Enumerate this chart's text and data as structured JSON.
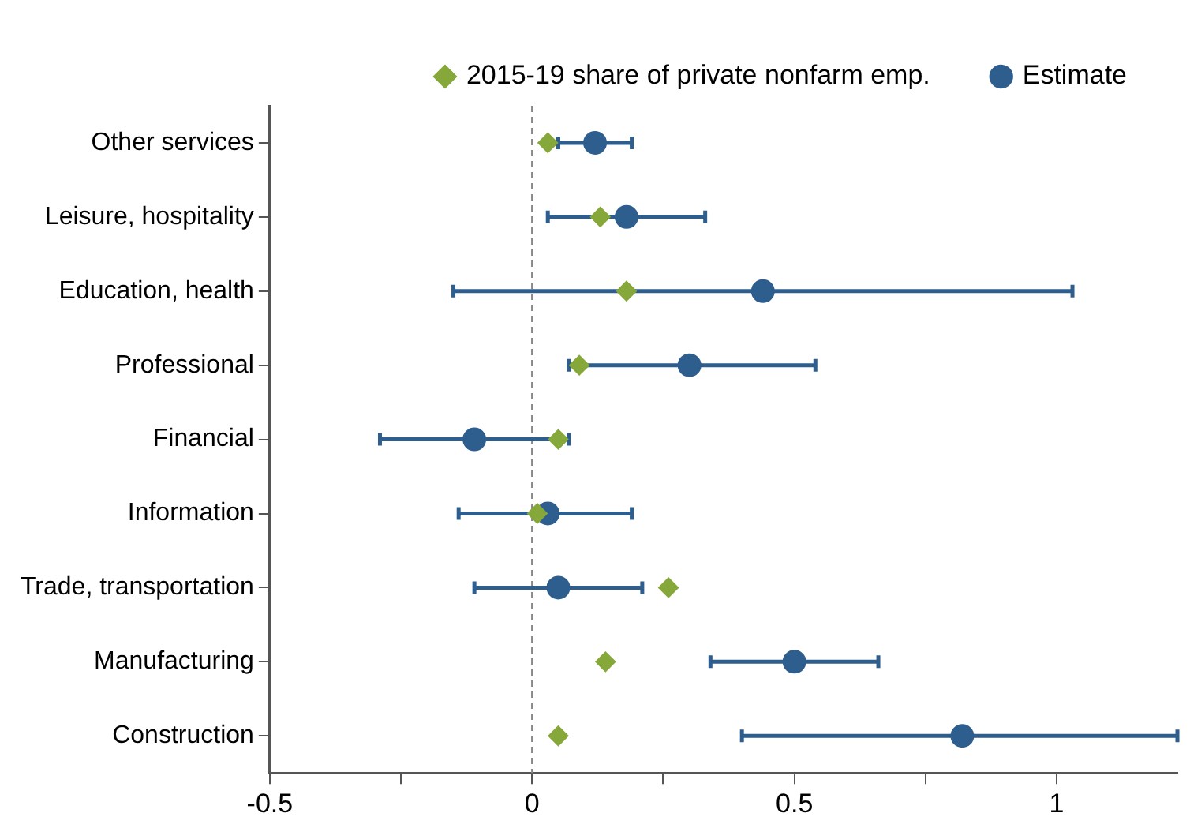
{
  "chart_data": {
    "type": "scatter",
    "orientation": "horizontal",
    "categories": [
      "Other services",
      "Leisure, hospitality",
      "Education, health",
      "Professional",
      "Financial",
      "Information",
      "Trade, transportation",
      "Manufacturing",
      "Construction"
    ],
    "series": [
      {
        "name": "2015-19 share of private nonfarm emp.",
        "color": "#86a83a",
        "marker": "diamond",
        "values": [
          0.03,
          0.13,
          0.18,
          0.09,
          0.05,
          0.01,
          0.26,
          0.14,
          0.05
        ]
      },
      {
        "name": "Estimate",
        "color": "#2e5e8e",
        "marker": "circle",
        "values": [
          0.12,
          0.18,
          0.44,
          0.3,
          -0.11,
          0.03,
          0.05,
          0.5,
          0.82
        ],
        "errors": [
          [
            0.05,
            0.19
          ],
          [
            0.03,
            0.33
          ],
          [
            -0.15,
            1.03
          ],
          [
            0.07,
            0.54
          ],
          [
            -0.29,
            0.07
          ],
          [
            -0.14,
            0.19
          ],
          [
            -0.11,
            0.21
          ],
          [
            0.34,
            0.66
          ],
          [
            0.4,
            1.23
          ]
        ]
      }
    ],
    "xlim": [
      -0.5,
      1.23
    ],
    "xticks": [
      -0.5,
      {
        "value": -0.25,
        "label": null
      },
      0,
      {
        "value": 0.25,
        "label": null
      },
      0.5,
      {
        "value": 0.75,
        "label": null
      },
      1
    ],
    "ref_lines": [
      {
        "axis": "x",
        "value": 0,
        "color": "#888888",
        "line_style": "dashed"
      }
    ],
    "grid": false,
    "legend": "top"
  }
}
